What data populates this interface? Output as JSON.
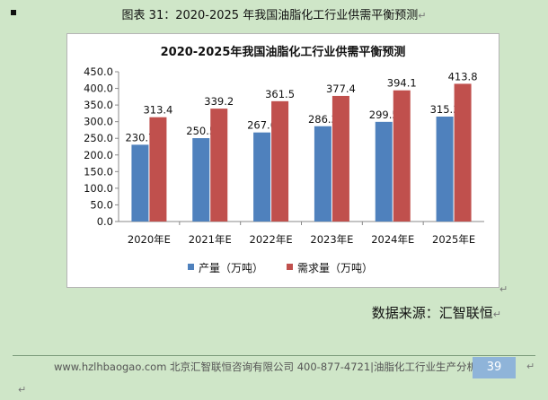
{
  "caption": "图表 31：2020-2025 年我国油脂化工行业供需平衡预测",
  "para_mark": "↵",
  "source": "数据来源：汇智联恒",
  "footer": {
    "text": "www.hzlhbaogao.com 北京汇智联恒咨询有限公司  400-877-4721|油脂化工行业生产分析",
    "page": "39"
  },
  "colors": {
    "series1": "#4f81bd",
    "series2": "#c0504d",
    "background": "#cfe6c8"
  },
  "chart_data": {
    "type": "bar",
    "title": "2020-2025年我国油脂化工行业供需平衡预测",
    "categories": [
      "2020年E",
      "2021年E",
      "2022年E",
      "2023年E",
      "2024年E",
      "2025年E"
    ],
    "series": [
      {
        "name": "产量（万吨）",
        "values": [
          230.7,
          250.5,
          267.6,
          286.3,
          299.5,
          315.3
        ],
        "labels": [
          "230.7",
          "250.5",
          "267.6",
          "286.3",
          "299.5",
          "315.3"
        ]
      },
      {
        "name": "需求量（万吨）",
        "values": [
          313.4,
          339.2,
          361.5,
          377.4,
          394.1,
          413.8
        ],
        "labels": [
          "313.4",
          "339.2",
          "361.5",
          "377.4",
          "394.1",
          "413.8"
        ]
      }
    ],
    "yticks": [
      "0.0",
      "50.0",
      "100.0",
      "150.0",
      "200.0",
      "250.0",
      "300.0",
      "350.0",
      "400.0",
      "450.0"
    ],
    "ylim": [
      0,
      450
    ],
    "xlabel": "",
    "ylabel": "",
    "grid": false,
    "legend": "bottom"
  }
}
